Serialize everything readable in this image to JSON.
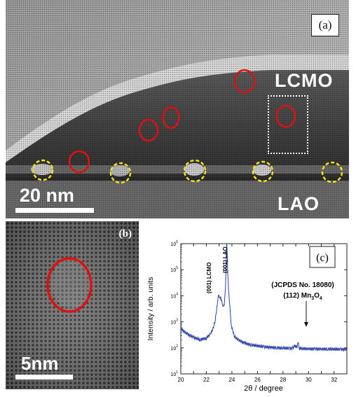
{
  "panel_a": {
    "label": "(a)",
    "top_material": "LCMO",
    "bottom_material": "LAO",
    "scale_bar": "20 nm"
  },
  "panel_b": {
    "label": "(b)",
    "scale_bar": "5nm"
  },
  "panel_c": {
    "label": "(c)",
    "chart_data": {
      "type": "line",
      "xlabel": "2θ / degree",
      "ylabel": "Intensity / arb. units",
      "xlim": [
        20,
        33
      ],
      "ylim_log10": [
        1,
        6
      ],
      "y_scale": "log",
      "x_ticks": [
        20,
        21,
        22,
        23,
        24,
        25,
        26,
        27,
        28,
        29,
        30,
        31,
        32
      ],
      "y_tick_labels": [
        "10^1",
        "10^2",
        "10^3",
        "10^4",
        "10^5",
        "10^6"
      ],
      "peaks": [
        {
          "label": "(001) LCMO",
          "x": 23.1,
          "y": 10000
        },
        {
          "label": "(001) LAO",
          "x": 23.6,
          "y": 1000000
        },
        {
          "label": "(112) Mn3O4",
          "x": 29.2,
          "y": 130
        }
      ],
      "annotation": "(JCPDS No. 18080)",
      "annotation_formula": {
        "pre": "(112) Mn",
        "sub1": "3",
        "mid": "O",
        "sub2": "4"
      },
      "series": [
        {
          "color": "#2b3fa8",
          "x": [
            20.0,
            20.5,
            21.0,
            21.5,
            22.0,
            22.3,
            22.5,
            22.7,
            22.85,
            22.95,
            23.05,
            23.12,
            23.2,
            23.3,
            23.4,
            23.5,
            23.56,
            23.6,
            23.64,
            23.7,
            23.8,
            23.9,
            24.0,
            24.2,
            24.5,
            25.0,
            25.5,
            26.0,
            26.5,
            27.0,
            27.5,
            28.0,
            28.5,
            28.9,
            29.1,
            29.2,
            29.3,
            29.5,
            30.0,
            30.5,
            31.0,
            31.5,
            32.0,
            32.5,
            33.0
          ],
          "y": [
            500,
            310,
            230,
            190,
            220,
            300,
            480,
            1200,
            5000,
            9000,
            10000,
            8500,
            6000,
            4000,
            4200,
            25000,
            300000,
            1000000,
            300000,
            40000,
            6000,
            1400,
            600,
            300,
            210,
            160,
            140,
            130,
            120,
            115,
            110,
            106,
            102,
            105,
            115,
            130,
            108,
            95,
            90,
            88,
            85,
            83,
            82,
            80,
            80
          ]
        }
      ]
    }
  }
}
